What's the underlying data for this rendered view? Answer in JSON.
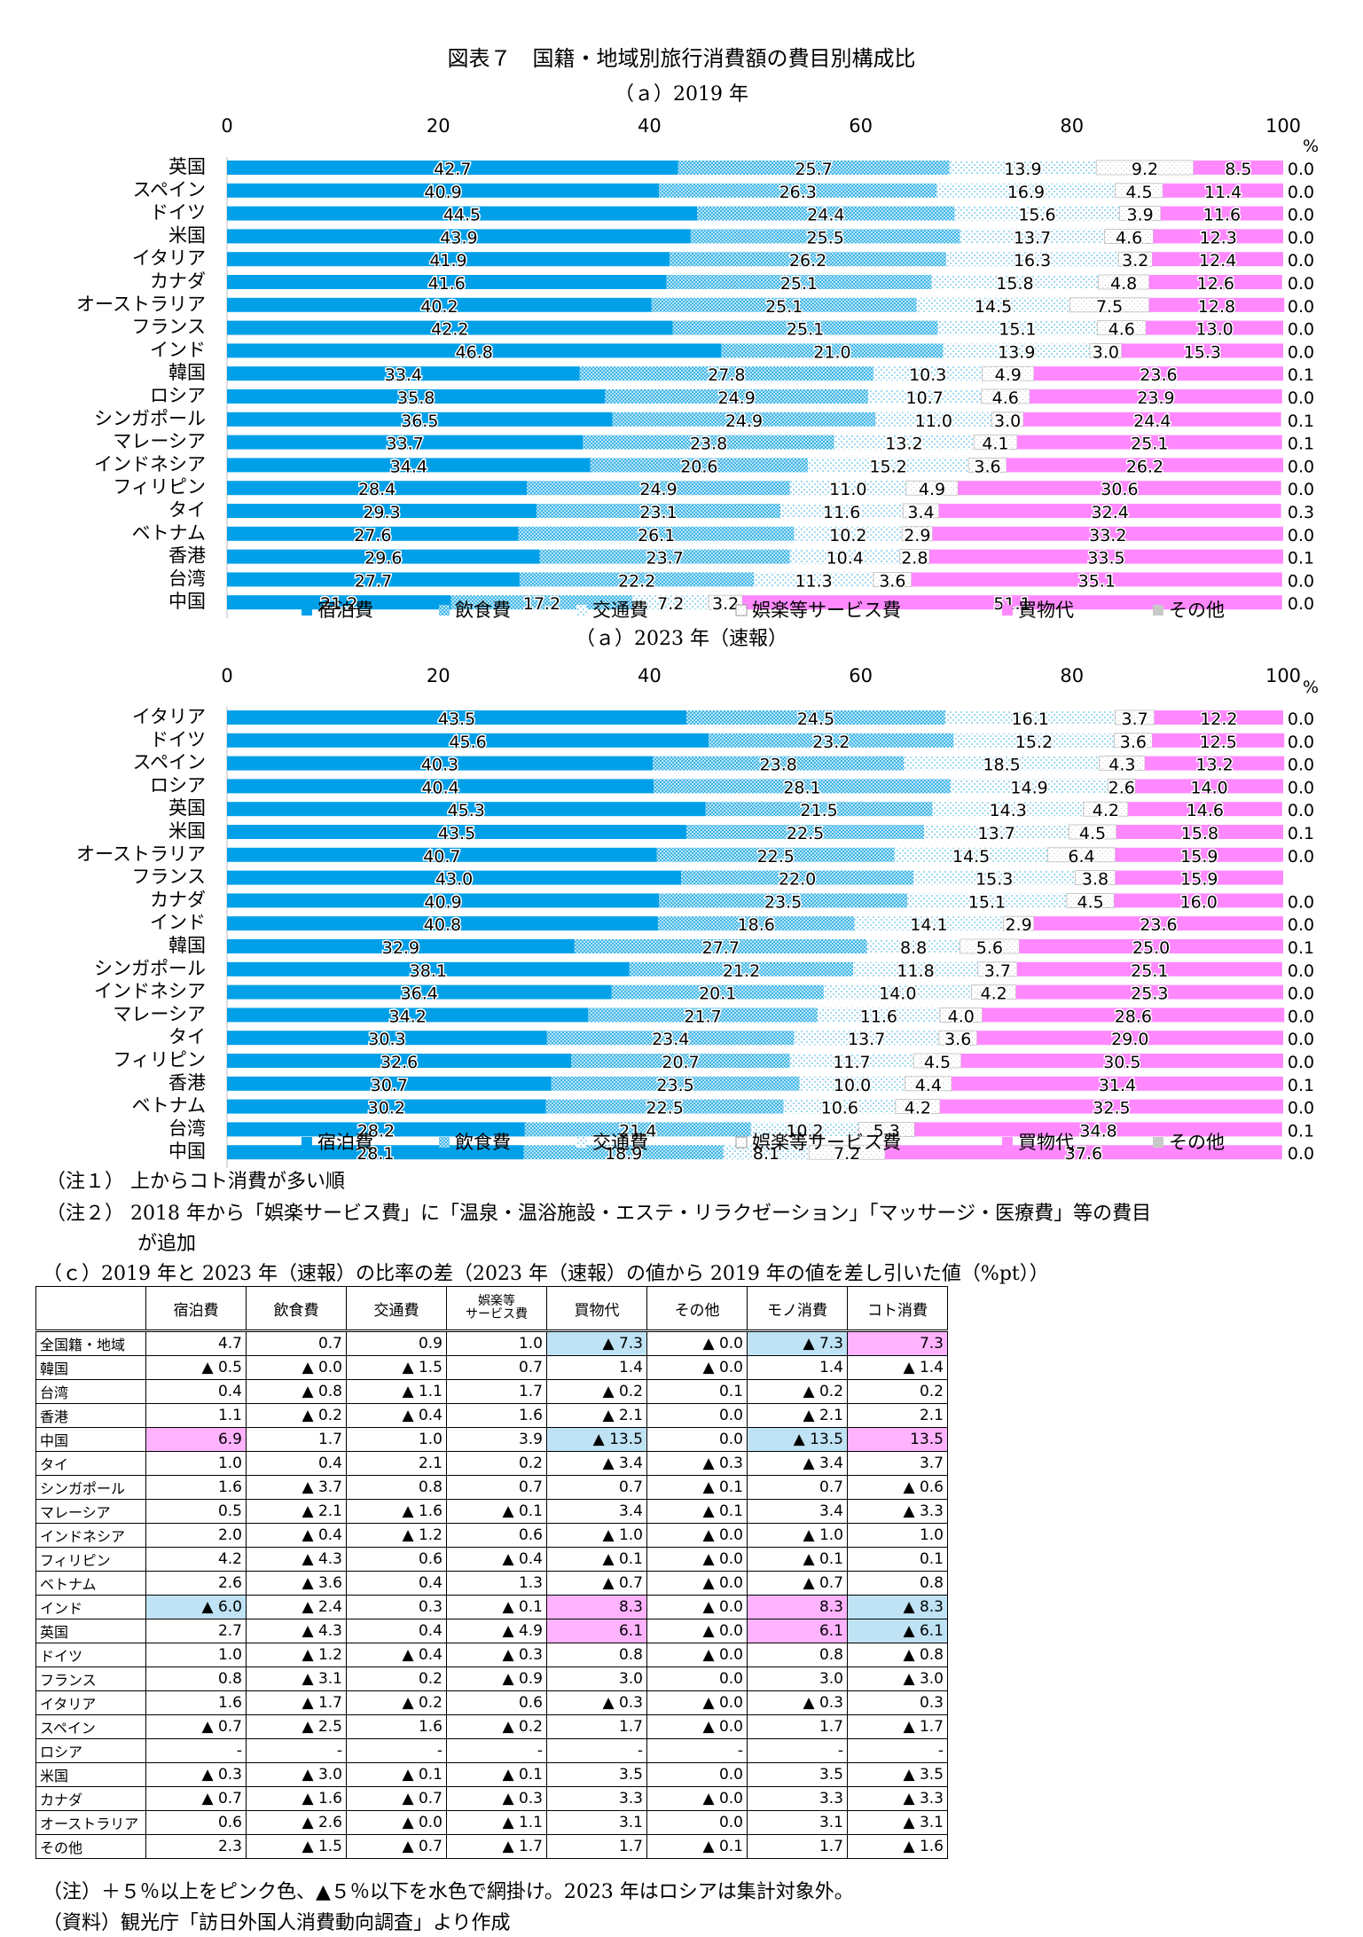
{
  "title": "図表７　国籍・地域別旅行消費額の費目別構成比",
  "chart_data": [
    {
      "type": "bar",
      "title": "（ａ）2019 年",
      "unit": "%",
      "xlim": [
        0,
        100
      ],
      "ticks": [
        0,
        20,
        40,
        60,
        80,
        100
      ],
      "categories": [
        "英国",
        "スペイン",
        "ドイツ",
        "米国",
        "イタリア",
        "カナダ",
        "オーストラリア",
        "フランス",
        "インド",
        "韓国",
        "ロシア",
        "シンガポール",
        "マレーシア",
        "インドネシア",
        "フィリピン",
        "タイ",
        "ベトナム",
        "香港",
        "台湾",
        "中国"
      ],
      "series": [
        {
          "name": "宿泊費",
          "color": "#00a0e9",
          "values": [
            42.7,
            40.9,
            44.5,
            43.9,
            41.9,
            41.6,
            40.2,
            42.2,
            46.8,
            33.4,
            35.8,
            36.5,
            33.7,
            34.4,
            28.4,
            29.3,
            27.6,
            29.6,
            27.7,
            21.2
          ]
        },
        {
          "name": "飲食費",
          "color": "#7fcef0",
          "values": [
            25.7,
            26.3,
            24.4,
            25.5,
            26.2,
            25.1,
            25.1,
            25.1,
            21.0,
            27.8,
            24.9,
            24.9,
            23.8,
            20.6,
            24.9,
            23.1,
            26.1,
            23.7,
            22.2,
            17.2
          ]
        },
        {
          "name": "交通費",
          "color": "#bfe7f7",
          "values": [
            13.9,
            16.9,
            15.6,
            13.7,
            16.3,
            15.8,
            14.5,
            15.1,
            13.9,
            10.3,
            10.7,
            11.0,
            13.2,
            15.2,
            11.0,
            11.6,
            10.2,
            10.4,
            11.3,
            7.2
          ]
        },
        {
          "name": "娯楽等サービス費",
          "color": "#ffffff",
          "values": [
            9.2,
            4.5,
            3.9,
            4.6,
            3.2,
            4.8,
            7.5,
            4.6,
            3.0,
            4.9,
            4.6,
            3.0,
            4.1,
            3.6,
            4.9,
            3.4,
            2.9,
            2.8,
            3.6,
            3.2
          ]
        },
        {
          "name": "買物代",
          "color": "#ff88ff",
          "values": [
            8.5,
            11.4,
            11.6,
            12.3,
            12.4,
            12.6,
            12.8,
            13.0,
            15.3,
            23.6,
            23.9,
            24.4,
            25.1,
            26.2,
            30.6,
            32.4,
            33.2,
            33.5,
            35.1,
            51.1
          ]
        },
        {
          "name": "その他",
          "color": "#c8c8c8",
          "values": [
            0.0,
            0.0,
            0.0,
            0.0,
            0.0,
            0.0,
            0.0,
            0.0,
            0.0,
            0.1,
            0.0,
            0.1,
            0.1,
            0.0,
            0.0,
            0.3,
            0.0,
            0.1,
            0.0,
            0.0
          ]
        }
      ]
    },
    {
      "type": "bar",
      "title": "（ａ）2023 年（速報）",
      "unit": "%",
      "xlim": [
        0,
        100
      ],
      "ticks": [
        0,
        20,
        40,
        60,
        80,
        100
      ],
      "categories": [
        "イタリア",
        "ドイツ",
        "スペイン",
        "ロシア",
        "英国",
        "米国",
        "オーストラリア",
        "フランス",
        "カナダ",
        "インド",
        "韓国",
        "シンガポール",
        "インドネシア",
        "マレーシア",
        "タイ",
        "フィリピン",
        "香港",
        "ベトナム",
        "台湾",
        "中国"
      ],
      "series": [
        {
          "name": "宿泊費",
          "color": "#00a0e9",
          "values": [
            43.5,
            45.6,
            40.3,
            40.4,
            45.3,
            43.5,
            40.7,
            43.0,
            40.9,
            40.8,
            32.9,
            38.1,
            36.4,
            34.2,
            30.3,
            32.6,
            30.7,
            30.2,
            28.2,
            28.1
          ]
        },
        {
          "name": "飲食費",
          "color": "#7fcef0",
          "values": [
            24.5,
            23.2,
            23.8,
            28.1,
            21.5,
            22.5,
            22.5,
            22.0,
            23.5,
            18.6,
            27.7,
            21.2,
            20.1,
            21.7,
            23.4,
            20.7,
            23.5,
            22.5,
            21.4,
            18.9
          ]
        },
        {
          "name": "交通費",
          "color": "#bfe7f7",
          "values": [
            16.1,
            15.2,
            18.5,
            14.9,
            14.3,
            13.7,
            14.5,
            15.3,
            15.1,
            14.1,
            8.8,
            11.8,
            14.0,
            11.6,
            13.7,
            11.7,
            10.0,
            10.6,
            10.2,
            8.1
          ]
        },
        {
          "name": "娯楽等サービス費",
          "color": "#ffffff",
          "values": [
            3.7,
            3.6,
            4.3,
            2.6,
            4.2,
            4.5,
            6.4,
            3.8,
            4.5,
            2.9,
            5.6,
            3.7,
            4.2,
            4.0,
            3.6,
            4.5,
            4.4,
            4.2,
            5.3,
            7.2
          ]
        },
        {
          "name": "買物代",
          "color": "#ff88ff",
          "values": [
            12.2,
            12.5,
            13.2,
            14.0,
            14.6,
            15.8,
            15.9,
            15.9,
            16.0,
            23.6,
            25.0,
            25.1,
            25.3,
            28.6,
            29.0,
            30.5,
            31.4,
            32.5,
            34.8,
            37.6
          ]
        },
        {
          "name": "その他",
          "color": "#c8c8c8",
          "values": [
            0.0,
            0.0,
            0.0,
            0.0,
            0.0,
            0.1,
            0.0,
            null,
            0.0,
            0.0,
            0.1,
            0.0,
            0.0,
            0.0,
            0.0,
            0.0,
            0.1,
            0.0,
            0.1,
            0.0
          ]
        }
      ]
    }
  ],
  "notes": {
    "n1": "（注１）  上からコト消費が多い順",
    "n2": "（注２）  2018 年から「娯楽サービス費」に「温泉・温浴施設・エステ・リラクゼーション」「マッサージ・医療費」等の費目",
    "n2b": "が追加",
    "c_title": "（ｃ）2019 年と 2023 年（速報）の比率の差（2023 年（速報）の値から 2019 年の値を差し引いた値（%pt））",
    "footer1": "（注）＋５％以上をピンク色、▲５％以下を水色で網掛け。2023 年はロシアは集計対象外。",
    "footer2": "（資料）観光庁「訪日外国人消費動向調査」より作成"
  },
  "table": {
    "headers": [
      "宿泊費",
      "飲食費",
      "交通費",
      "娯楽等\nサービス費",
      "買物代",
      "その他",
      "モノ消費",
      "コト消費"
    ],
    "rows": [
      {
        "label": "全国籍・地域",
        "values": [
          "4.7",
          "0.7",
          "0.9",
          "1.0",
          "▲ 7.3",
          "▲ 0.0",
          "▲ 7.3",
          "7.3"
        ]
      },
      {
        "label": "韓国",
        "values": [
          "▲ 0.5",
          "▲ 0.0",
          "▲ 1.5",
          "0.7",
          "1.4",
          "▲ 0.0",
          "1.4",
          "▲ 1.4"
        ]
      },
      {
        "label": "台湾",
        "values": [
          "0.4",
          "▲ 0.8",
          "▲ 1.1",
          "1.7",
          "▲ 0.2",
          "0.1",
          "▲ 0.2",
          "0.2"
        ]
      },
      {
        "label": "香港",
        "values": [
          "1.1",
          "▲ 0.2",
          "▲ 0.4",
          "1.6",
          "▲ 2.1",
          "0.0",
          "▲ 2.1",
          "2.1"
        ]
      },
      {
        "label": "中国",
        "values": [
          "6.9",
          "1.7",
          "1.0",
          "3.9",
          "▲ 13.5",
          "0.0",
          "▲ 13.5",
          "13.5"
        ]
      },
      {
        "label": "タイ",
        "values": [
          "1.0",
          "0.4",
          "2.1",
          "0.2",
          "▲ 3.4",
          "▲ 0.3",
          "▲ 3.4",
          "3.7"
        ]
      },
      {
        "label": "シンガポール",
        "values": [
          "1.6",
          "▲ 3.7",
          "0.8",
          "0.7",
          "0.7",
          "▲ 0.1",
          "0.7",
          "▲ 0.6"
        ]
      },
      {
        "label": "マレーシア",
        "values": [
          "0.5",
          "▲ 2.1",
          "▲ 1.6",
          "▲ 0.1",
          "3.4",
          "▲ 0.1",
          "3.4",
          "▲ 3.3"
        ]
      },
      {
        "label": "インドネシア",
        "values": [
          "2.0",
          "▲ 0.4",
          "▲ 1.2",
          "0.6",
          "▲ 1.0",
          "▲ 0.0",
          "▲ 1.0",
          "1.0"
        ]
      },
      {
        "label": "フィリピン",
        "values": [
          "4.2",
          "▲ 4.3",
          "0.6",
          "▲ 0.4",
          "▲ 0.1",
          "▲ 0.0",
          "▲ 0.1",
          "0.1"
        ]
      },
      {
        "label": "ベトナム",
        "values": [
          "2.6",
          "▲ 3.6",
          "0.4",
          "1.3",
          "▲ 0.7",
          "▲ 0.0",
          "▲ 0.7",
          "0.8"
        ]
      },
      {
        "label": "インド",
        "values": [
          "▲ 6.0",
          "▲ 2.4",
          "0.3",
          "▲ 0.1",
          "8.3",
          "▲ 0.0",
          "8.3",
          "▲ 8.3"
        ]
      },
      {
        "label": "英国",
        "values": [
          "2.7",
          "▲ 4.3",
          "0.4",
          "▲ 4.9",
          "6.1",
          "▲ 0.0",
          "6.1",
          "▲ 6.1"
        ]
      },
      {
        "label": "ドイツ",
        "values": [
          "1.0",
          "▲ 1.2",
          "▲ 0.4",
          "▲ 0.3",
          "0.8",
          "▲ 0.0",
          "0.8",
          "▲ 0.8"
        ]
      },
      {
        "label": "フランス",
        "values": [
          "0.8",
          "▲ 3.1",
          "0.2",
          "▲ 0.9",
          "3.0",
          "0.0",
          "3.0",
          "▲ 3.0"
        ]
      },
      {
        "label": "イタリア",
        "values": [
          "1.6",
          "▲ 1.7",
          "▲ 0.2",
          "0.6",
          "▲ 0.3",
          "▲ 0.0",
          "▲ 0.3",
          "0.3"
        ]
      },
      {
        "label": "スペイン",
        "values": [
          "▲ 0.7",
          "▲ 2.5",
          "1.6",
          "▲ 0.2",
          "1.7",
          "▲ 0.0",
          "1.7",
          "▲ 1.7"
        ]
      },
      {
        "label": "ロシア",
        "values": [
          "-",
          "-",
          "-",
          "-",
          "-",
          "-",
          "-",
          "-"
        ]
      },
      {
        "label": "米国",
        "values": [
          "▲ 0.3",
          "▲ 3.0",
          "▲ 0.1",
          "▲ 0.1",
          "3.5",
          "0.0",
          "3.5",
          "▲ 3.5"
        ]
      },
      {
        "label": "カナダ",
        "values": [
          "▲ 0.7",
          "▲ 1.6",
          "▲ 0.7",
          "▲ 0.3",
          "3.3",
          "▲ 0.0",
          "3.3",
          "▲ 3.3"
        ]
      },
      {
        "label": "オーストラリア",
        "values": [
          "0.6",
          "▲ 2.6",
          "▲ 0.0",
          "▲ 1.1",
          "3.1",
          "0.0",
          "3.1",
          "▲ 3.1"
        ]
      },
      {
        "label": "その他",
        "values": [
          "2.3",
          "▲ 1.5",
          "▲ 0.7",
          "▲ 1.7",
          "1.7",
          "▲ 0.1",
          "1.7",
          "▲ 1.6"
        ]
      }
    ],
    "highlights": {
      "pink": [
        [
          0,
          7
        ],
        [
          4,
          0
        ],
        [
          4,
          7
        ],
        [
          11,
          4
        ],
        [
          11,
          6
        ],
        [
          12,
          4
        ],
        [
          12,
          6
        ]
      ],
      "blue": [
        [
          0,
          4
        ],
        [
          0,
          6
        ],
        [
          4,
          4
        ],
        [
          4,
          6
        ],
        [
          11,
          0
        ],
        [
          11,
          7
        ],
        [
          12,
          7
        ]
      ]
    }
  }
}
